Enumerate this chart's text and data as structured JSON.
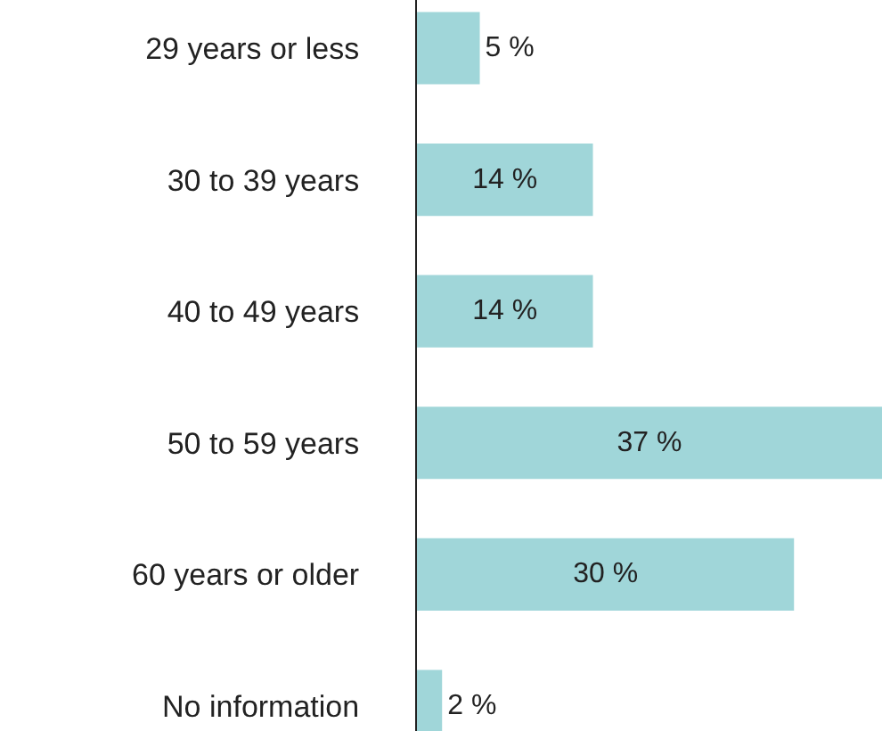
{
  "chart_data": {
    "type": "bar",
    "orientation": "horizontal",
    "categories": [
      "29 years or less",
      "30 to 39 years",
      "40 to 49 years",
      "50 to 59 years",
      "60 years or older",
      "No information"
    ],
    "values": [
      5,
      14,
      14,
      37,
      30,
      2
    ],
    "value_labels": [
      "5 %",
      "14 %",
      "14 %",
      "37 %",
      "30 %",
      "2 %"
    ],
    "color": "#a0d6d9"
  }
}
